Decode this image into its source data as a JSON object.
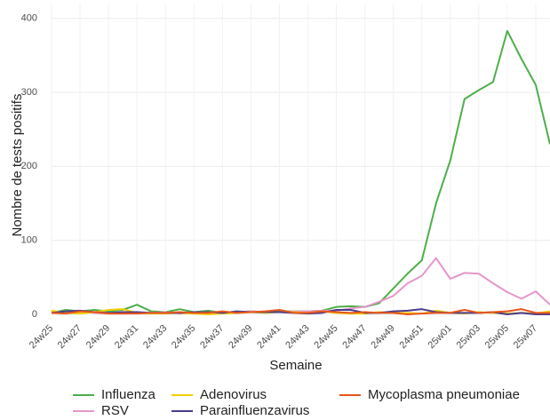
{
  "chart_data": {
    "type": "line",
    "x_label": "Semaine",
    "y_label": "Nombre de tests positifs",
    "categories": [
      "24w25",
      null,
      "24w27",
      null,
      "24w29",
      null,
      "24w31",
      null,
      "24w33",
      null,
      "24w35",
      null,
      "24w37",
      null,
      "24w39",
      null,
      "24w41",
      null,
      "24w43",
      null,
      "24w45",
      null,
      "24w47",
      null,
      "24w49",
      null,
      "24w51",
      null,
      "25w01",
      null,
      "25w03",
      null,
      "25w05",
      null,
      "25w07",
      null
    ],
    "series": [
      {
        "name": "Influenza",
        "color": "#4daf4a",
        "values": [
          2,
          6,
          4,
          6,
          4,
          6,
          13,
          4,
          3,
          7,
          3,
          5,
          2,
          3,
          4,
          3,
          4,
          4,
          4,
          5,
          10,
          11,
          10,
          15,
          35,
          55,
          73,
          150,
          208,
          291,
          303,
          314,
          383,
          345,
          310,
          230
        ]
      },
      {
        "name": "RSV",
        "color": "#e597c9",
        "values": [
          2,
          3,
          4,
          2,
          1,
          1,
          2,
          2,
          3,
          1,
          2,
          3,
          3,
          3,
          4,
          3,
          3,
          4,
          4,
          5,
          5,
          8,
          10,
          17,
          25,
          42,
          52,
          76,
          48,
          56,
          55,
          42,
          30,
          21,
          31,
          13
        ]
      },
      {
        "name": "Adenovirus",
        "color": "#f2d000",
        "values": [
          5,
          2,
          1,
          3,
          6,
          7,
          2,
          1,
          1,
          2,
          1,
          0,
          1,
          2,
          3,
          2,
          3,
          3,
          2,
          4,
          2,
          1,
          1,
          3,
          2,
          2,
          1,
          5,
          2,
          1,
          3,
          2,
          1,
          2,
          1,
          4
        ]
      },
      {
        "name": "Parainfluenzavirus",
        "color": "#4b3b8c",
        "values": [
          2,
          4,
          5,
          3,
          2,
          3,
          3,
          2,
          2,
          2,
          3,
          3,
          2,
          4,
          3,
          3,
          3,
          2,
          1,
          2,
          6,
          6,
          2,
          2,
          4,
          5,
          7,
          3,
          2,
          2,
          2,
          3,
          0,
          2,
          0,
          0
        ]
      },
      {
        "name": "Mycoplasma pneumoniae",
        "color": "#e8561c",
        "values": [
          2,
          1,
          4,
          3,
          1,
          1,
          1,
          2,
          2,
          3,
          2,
          2,
          4,
          2,
          3,
          4,
          6,
          2,
          2,
          4,
          3,
          2,
          3,
          2,
          2,
          0,
          1,
          2,
          2,
          6,
          2,
          3,
          4,
          7,
          2,
          2
        ]
      }
    ],
    "ylim": [
      0,
      420
    ],
    "yticks": [
      0,
      100,
      200,
      300,
      400
    ],
    "grid": true,
    "legend": "bottom"
  }
}
